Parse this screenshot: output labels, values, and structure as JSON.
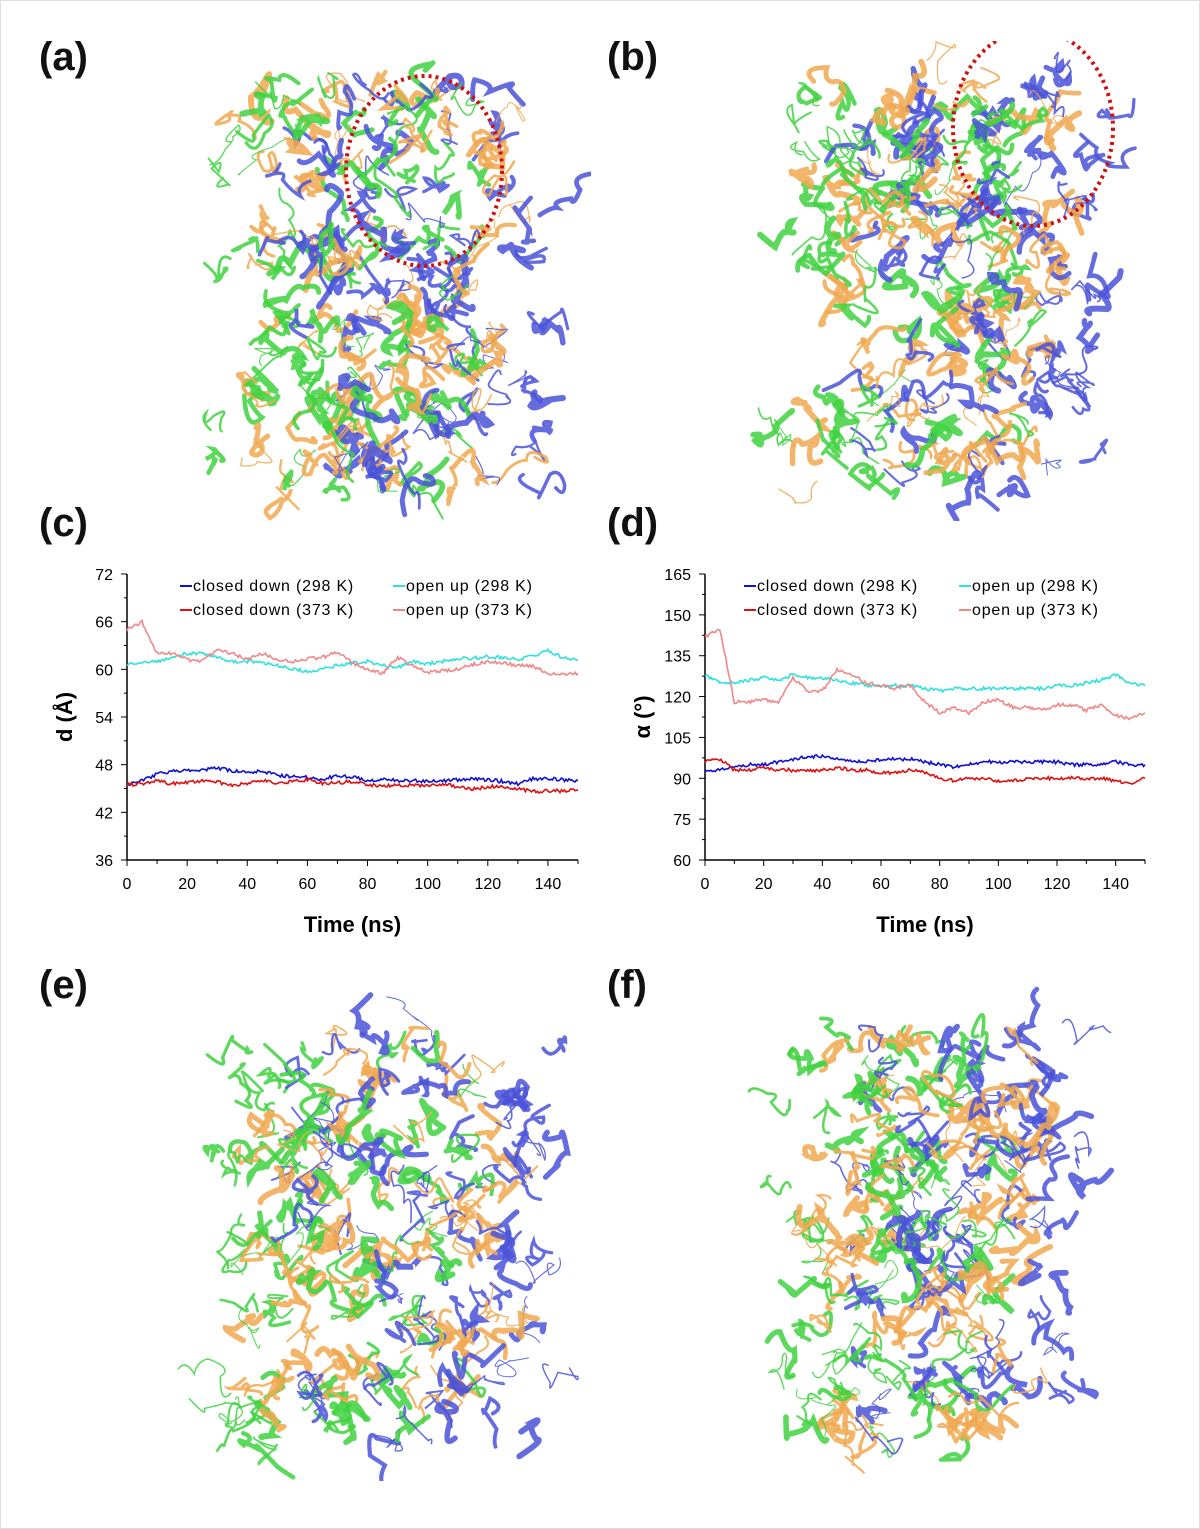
{
  "panels": {
    "a": "(a)",
    "b": "(b)",
    "c": "(c)",
    "d": "(d)",
    "e": "(e)",
    "f": "(f)"
  },
  "molecule_colors": {
    "chain1": "#3fd23f",
    "chain2": "#f0a850",
    "chain3": "#4a52d8",
    "highlight": "#d01010"
  },
  "chart_data": [
    {
      "panel": "c",
      "type": "line",
      "xlabel": "Time (ns)",
      "ylabel": "d (Å)",
      "xlim": [
        0,
        150
      ],
      "ylim": [
        36,
        72
      ],
      "xticks": [
        0,
        20,
        40,
        60,
        80,
        100,
        120,
        140
      ],
      "yticks": [
        36,
        42,
        48,
        54,
        60,
        66,
        72
      ],
      "legend_placement": "top",
      "grid": false,
      "x": [
        0,
        5,
        10,
        15,
        20,
        25,
        30,
        35,
        40,
        45,
        50,
        55,
        60,
        65,
        70,
        75,
        80,
        85,
        90,
        95,
        100,
        105,
        110,
        115,
        120,
        125,
        130,
        135,
        140,
        145,
        150
      ],
      "series": [
        {
          "name": "closed down (298 K)",
          "color": "#1010d0",
          "values": [
            45.5,
            46,
            46.8,
            47.2,
            47.2,
            47.3,
            47.6,
            47.2,
            47,
            47.2,
            46.7,
            46.5,
            46.4,
            46.2,
            46.6,
            46.5,
            45.9,
            46.2,
            46,
            46,
            45.9,
            46,
            46.1,
            46.2,
            46.1,
            45.9,
            45.6,
            46.2,
            46.3,
            46.1,
            46
          ]
        },
        {
          "name": "open up (298 K)",
          "color": "#30e0e0",
          "values": [
            60.5,
            61,
            61,
            61.5,
            62,
            62,
            61.5,
            61,
            61,
            60.8,
            60.5,
            60,
            59.8,
            60,
            60.5,
            60.8,
            61,
            60.5,
            60.3,
            61,
            60.7,
            61,
            61.4,
            61.4,
            61.6,
            61.5,
            61.3,
            61.6,
            62.4,
            61.5,
            61.2
          ]
        },
        {
          "name": "closed down (373 K)",
          "color": "#e01010",
          "values": [
            45.5,
            45.6,
            46,
            45.6,
            45.8,
            46,
            45.8,
            45.4,
            45.6,
            46,
            45.6,
            45.9,
            46.1,
            45.7,
            45.7,
            45.9,
            45.5,
            45.3,
            45.4,
            45.4,
            45.4,
            45.6,
            45.2,
            44.9,
            45.2,
            45.3,
            45,
            44.6,
            44.7,
            44.7,
            44.8
          ]
        },
        {
          "name": "open up (373 K)",
          "color": "#f08888",
          "values": [
            65,
            66,
            62,
            62,
            61.2,
            61,
            62.5,
            62,
            61.2,
            62,
            61.2,
            61,
            61.3,
            61.5,
            62.2,
            60.8,
            60,
            59.5,
            61.5,
            60.5,
            59.6,
            59.8,
            60,
            60.6,
            61,
            60.8,
            60.5,
            60.4,
            59.5,
            59.3,
            59.5
          ]
        }
      ]
    },
    {
      "panel": "d",
      "type": "line",
      "xlabel": "Time (ns)",
      "ylabel": "α (°)",
      "xlim": [
        0,
        150
      ],
      "ylim": [
        60,
        165
      ],
      "xticks": [
        0,
        20,
        40,
        60,
        80,
        100,
        120,
        140
      ],
      "yticks": [
        60,
        75,
        90,
        105,
        120,
        135,
        150,
        165
      ],
      "legend_placement": "top",
      "grid": false,
      "x": [
        0,
        5,
        10,
        15,
        20,
        25,
        30,
        35,
        40,
        45,
        50,
        55,
        60,
        65,
        70,
        75,
        80,
        85,
        90,
        95,
        100,
        105,
        110,
        115,
        120,
        125,
        130,
        135,
        140,
        145,
        150
      ],
      "series": [
        {
          "name": "closed down (298 K)",
          "color": "#1010d0",
          "values": [
            93,
            93,
            94,
            95,
            95,
            96,
            97,
            98,
            98,
            97,
            96,
            96,
            97,
            97,
            97,
            96,
            95,
            94,
            95,
            96,
            96,
            96,
            96,
            96,
            96,
            95,
            95,
            95,
            96,
            95,
            95
          ]
        },
        {
          "name": "open up (298 K)",
          "color": "#30e0e0",
          "values": [
            128,
            125,
            125,
            126,
            127,
            126,
            128,
            127,
            127,
            126,
            125,
            124,
            124,
            124,
            124,
            123,
            122,
            123,
            123,
            123,
            123,
            123,
            123,
            123,
            124,
            124,
            125,
            126,
            128,
            125,
            124
          ]
        },
        {
          "name": "closed down (373 K)",
          "color": "#e01010",
          "values": [
            96,
            97,
            93,
            93,
            94,
            93,
            93,
            93,
            93,
            94,
            93,
            93,
            92,
            92,
            93,
            92,
            90,
            89,
            90,
            90,
            89,
            89,
            90,
            90,
            90,
            90,
            90,
            90,
            89,
            88,
            90
          ]
        },
        {
          "name": "open up (373 K)",
          "color": "#f08888",
          "values": [
            142,
            145,
            118,
            118,
            119,
            118,
            127,
            122,
            122,
            130,
            128,
            125,
            124,
            123,
            124,
            118,
            114,
            116,
            114,
            118,
            119,
            116,
            116,
            115,
            117,
            117,
            115,
            117,
            113,
            112,
            114
          ]
        }
      ]
    }
  ]
}
